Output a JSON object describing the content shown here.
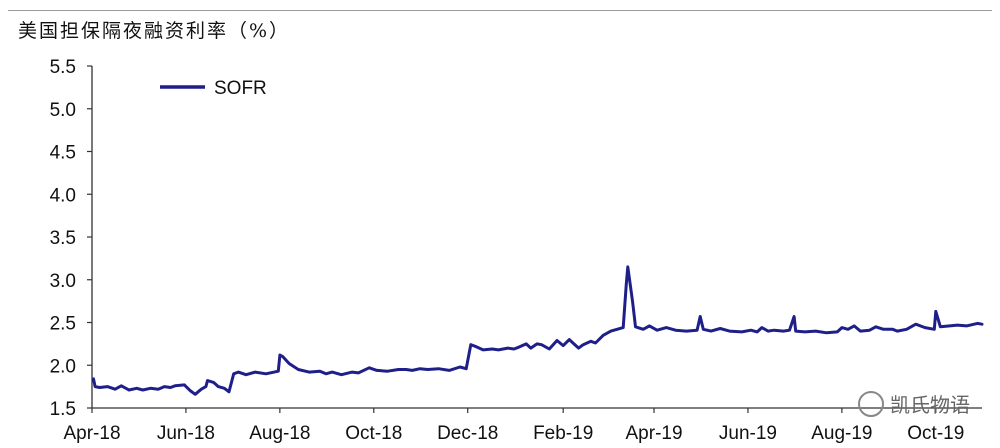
{
  "header": {
    "title": "美国担保隔夜融资利率（%）"
  },
  "watermark": {
    "text": "凯氏物语",
    "icon": "wechat-icon"
  },
  "colors": {
    "line": "#1f1f8a",
    "axis": "#333333",
    "text": "#111111"
  },
  "chart_data": {
    "type": "line",
    "title": "美国担保隔夜融资利率（%）",
    "xlabel": "",
    "ylabel": "",
    "ylim": [
      1.5,
      5.5
    ],
    "xlim": [
      "2018-04-01",
      "2019-10-31"
    ],
    "yticks": [
      "1.5",
      "2.0",
      "2.5",
      "3.0",
      "3.5",
      "4.0",
      "4.5",
      "5.0",
      "5.5"
    ],
    "xticks": [
      {
        "label": "Apr-18",
        "date": "2018-04-01"
      },
      {
        "label": "Jun-18",
        "date": "2018-06-01"
      },
      {
        "label": "Aug-18",
        "date": "2018-08-01"
      },
      {
        "label": "Oct-18",
        "date": "2018-10-01"
      },
      {
        "label": "Dec-18",
        "date": "2018-12-01"
      },
      {
        "label": "Feb-19",
        "date": "2019-02-01"
      },
      {
        "label": "Apr-19",
        "date": "2019-04-01"
      },
      {
        "label": "Jun-19",
        "date": "2019-06-01"
      },
      {
        "label": "Aug-19",
        "date": "2019-08-01"
      },
      {
        "label": "Oct-19",
        "date": "2019-10-01"
      }
    ],
    "legend": {
      "position": "top-left"
    },
    "grid": false,
    "series": [
      {
        "name": "SOFR",
        "color": "#1f1f8a",
        "points": [
          [
            "2018-04-02",
            1.84
          ],
          [
            "2018-04-03",
            1.75
          ],
          [
            "2018-04-06",
            1.74
          ],
          [
            "2018-04-11",
            1.75
          ],
          [
            "2018-04-16",
            1.72
          ],
          [
            "2018-04-20",
            1.76
          ],
          [
            "2018-04-25",
            1.71
          ],
          [
            "2018-04-30",
            1.73
          ],
          [
            "2018-05-04",
            1.71
          ],
          [
            "2018-05-09",
            1.73
          ],
          [
            "2018-05-14",
            1.72
          ],
          [
            "2018-05-18",
            1.75
          ],
          [
            "2018-05-22",
            1.74
          ],
          [
            "2018-05-25",
            1.76
          ],
          [
            "2018-05-31",
            1.77
          ],
          [
            "2018-06-04",
            1.7
          ],
          [
            "2018-06-07",
            1.66
          ],
          [
            "2018-06-11",
            1.72
          ],
          [
            "2018-06-14",
            1.75
          ],
          [
            "2018-06-15",
            1.82
          ],
          [
            "2018-06-19",
            1.8
          ],
          [
            "2018-06-22",
            1.75
          ],
          [
            "2018-06-26",
            1.73
          ],
          [
            "2018-06-29",
            1.69
          ],
          [
            "2018-07-02",
            1.9
          ],
          [
            "2018-07-05",
            1.92
          ],
          [
            "2018-07-10",
            1.89
          ],
          [
            "2018-07-16",
            1.92
          ],
          [
            "2018-07-23",
            1.9
          ],
          [
            "2018-07-31",
            1.93
          ],
          [
            "2018-08-01",
            2.12
          ],
          [
            "2018-08-03",
            2.1
          ],
          [
            "2018-08-07",
            2.02
          ],
          [
            "2018-08-13",
            1.95
          ],
          [
            "2018-08-20",
            1.92
          ],
          [
            "2018-08-27",
            1.93
          ],
          [
            "2018-08-31",
            1.9
          ],
          [
            "2018-09-04",
            1.92
          ],
          [
            "2018-09-10",
            1.89
          ],
          [
            "2018-09-17",
            1.92
          ],
          [
            "2018-09-21",
            1.91
          ],
          [
            "2018-09-28",
            1.97
          ],
          [
            "2018-10-03",
            1.94
          ],
          [
            "2018-10-10",
            1.93
          ],
          [
            "2018-10-17",
            1.95
          ],
          [
            "2018-10-22",
            1.95
          ],
          [
            "2018-10-26",
            1.94
          ],
          [
            "2018-10-31",
            1.96
          ],
          [
            "2018-11-05",
            1.95
          ],
          [
            "2018-11-12",
            1.96
          ],
          [
            "2018-11-19",
            1.94
          ],
          [
            "2018-11-26",
            1.98
          ],
          [
            "2018-11-30",
            1.96
          ],
          [
            "2018-12-03",
            2.24
          ],
          [
            "2018-12-06",
            2.22
          ],
          [
            "2018-12-11",
            2.18
          ],
          [
            "2018-12-17",
            2.19
          ],
          [
            "2018-12-21",
            2.18
          ],
          [
            "2018-12-27",
            2.2
          ],
          [
            "2018-12-31",
            2.19
          ],
          [
            "2019-01-03",
            2.21
          ],
          [
            "2019-01-08",
            2.25
          ],
          [
            "2019-01-11",
            2.2
          ],
          [
            "2019-01-15",
            2.25
          ],
          [
            "2019-01-18",
            2.24
          ],
          [
            "2019-01-23",
            2.19
          ],
          [
            "2019-01-28",
            2.29
          ],
          [
            "2019-02-01",
            2.23
          ],
          [
            "2019-02-05",
            2.3
          ],
          [
            "2019-02-11",
            2.2
          ],
          [
            "2019-02-14",
            2.24
          ],
          [
            "2019-02-19",
            2.28
          ],
          [
            "2019-02-22",
            2.26
          ],
          [
            "2019-02-27",
            2.35
          ],
          [
            "2019-03-04",
            2.4
          ],
          [
            "2019-03-08",
            2.42
          ],
          [
            "2019-03-12",
            2.44
          ],
          [
            "2019-03-14",
            2.95
          ],
          [
            "2019-03-15",
            3.15
          ],
          [
            "2019-03-18",
            2.75
          ],
          [
            "2019-03-20",
            2.45
          ],
          [
            "2019-03-25",
            2.42
          ],
          [
            "2019-03-29",
            2.46
          ],
          [
            "2019-04-03",
            2.41
          ],
          [
            "2019-04-09",
            2.44
          ],
          [
            "2019-04-15",
            2.41
          ],
          [
            "2019-04-22",
            2.4
          ],
          [
            "2019-04-29",
            2.41
          ],
          [
            "2019-05-01",
            2.57
          ],
          [
            "2019-05-03",
            2.42
          ],
          [
            "2019-05-08",
            2.4
          ],
          [
            "2019-05-14",
            2.43
          ],
          [
            "2019-05-20",
            2.4
          ],
          [
            "2019-05-28",
            2.39
          ],
          [
            "2019-06-03",
            2.41
          ],
          [
            "2019-06-07",
            2.39
          ],
          [
            "2019-06-10",
            2.44
          ],
          [
            "2019-06-14",
            2.4
          ],
          [
            "2019-06-18",
            2.41
          ],
          [
            "2019-06-24",
            2.4
          ],
          [
            "2019-06-28",
            2.41
          ],
          [
            "2019-07-01",
            2.57
          ],
          [
            "2019-07-02",
            2.4
          ],
          [
            "2019-07-08",
            2.39
          ],
          [
            "2019-07-15",
            2.4
          ],
          [
            "2019-07-22",
            2.38
          ],
          [
            "2019-07-29",
            2.39
          ],
          [
            "2019-08-01",
            2.44
          ],
          [
            "2019-08-05",
            2.42
          ],
          [
            "2019-08-09",
            2.46
          ],
          [
            "2019-08-13",
            2.4
          ],
          [
            "2019-08-19",
            2.41
          ],
          [
            "2019-08-23",
            2.45
          ],
          [
            "2019-08-28",
            2.42
          ],
          [
            "2019-09-03",
            2.42
          ],
          [
            "2019-09-06",
            2.4
          ],
          [
            "2019-09-12",
            2.42
          ],
          [
            "2019-09-18",
            2.48
          ],
          [
            "2019-09-24",
            2.44
          ],
          [
            "2019-09-30",
            2.42
          ],
          [
            "2019-10-01",
            2.63
          ],
          [
            "2019-10-04",
            2.45
          ],
          [
            "2019-10-10",
            2.46
          ],
          [
            "2019-10-15",
            2.47
          ],
          [
            "2019-10-21",
            2.46
          ],
          [
            "2019-10-28",
            2.49
          ],
          [
            "2019-10-31",
            2.48
          ]
        ]
      }
    ]
  }
}
